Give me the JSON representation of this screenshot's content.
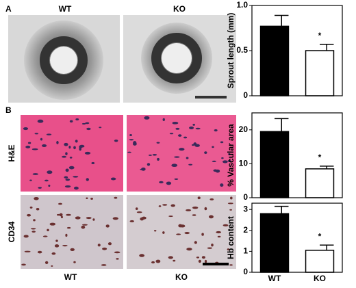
{
  "panels": {
    "a": "A",
    "b": "B"
  },
  "image_labels": {
    "top": [
      "WT",
      "KO"
    ],
    "rows": [
      "H&E",
      "CD34"
    ],
    "bottom": [
      "WT",
      "KO"
    ]
  },
  "chart_data": [
    {
      "type": "bar",
      "ylabel": "Sprout length (mm)",
      "categories": [
        null,
        null
      ],
      "values": [
        0.77,
        0.5
      ],
      "errors": [
        0.12,
        0.07
      ],
      "colors": [
        "#000000",
        "#ffffff"
      ],
      "ylim": [
        0,
        1.0
      ],
      "yticks": [
        0,
        0.5,
        {
          "value": 1,
          "label": "1.0"
        }
      ],
      "annotation": "*"
    },
    {
      "type": "bar",
      "ylabel": "% Vascular area",
      "categories": [
        null,
        null
      ],
      "values": [
        19.5,
        8.5
      ],
      "errors": [
        3.8,
        0.8
      ],
      "colors": [
        "#000000",
        "#ffffff"
      ],
      "ylim": [
        0,
        25
      ],
      "yticks": [
        0,
        10,
        20
      ],
      "annotation": "*"
    },
    {
      "type": "bar",
      "ylabel": "Hb content",
      "categories": [
        "WT",
        "KO"
      ],
      "values": [
        2.8,
        1.05
      ],
      "errors": [
        0.35,
        0.25
      ],
      "colors": [
        "#000000",
        "#ffffff"
      ],
      "ylim": [
        0,
        3.3
      ],
      "yticks": [
        0,
        1,
        2,
        3
      ],
      "annotation": "*"
    }
  ]
}
